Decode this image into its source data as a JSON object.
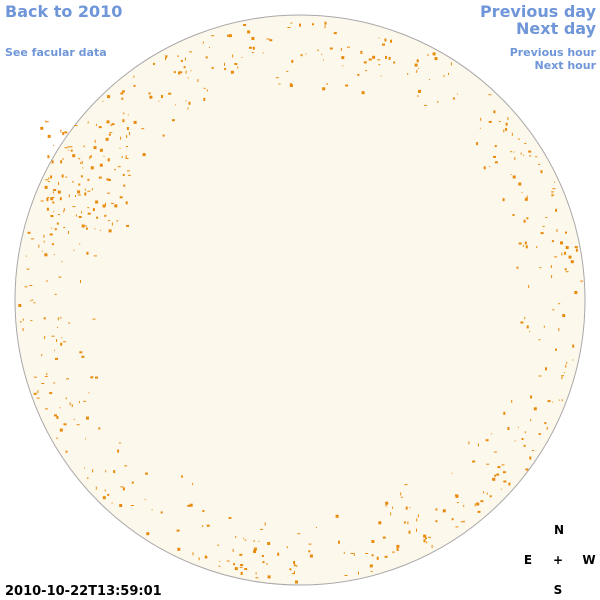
{
  "links": {
    "back": "Back to 2010",
    "facular": "See facular data",
    "previous_day": "Previous day",
    "next_day": "Next day",
    "previous_hour": "Previous hour",
    "next_hour": "Next hour"
  },
  "timestamp": "2010-10-22T13:59:01",
  "compass": {
    "north": "N",
    "east": "E",
    "center": "+",
    "west": "W",
    "south": "S"
  }
}
